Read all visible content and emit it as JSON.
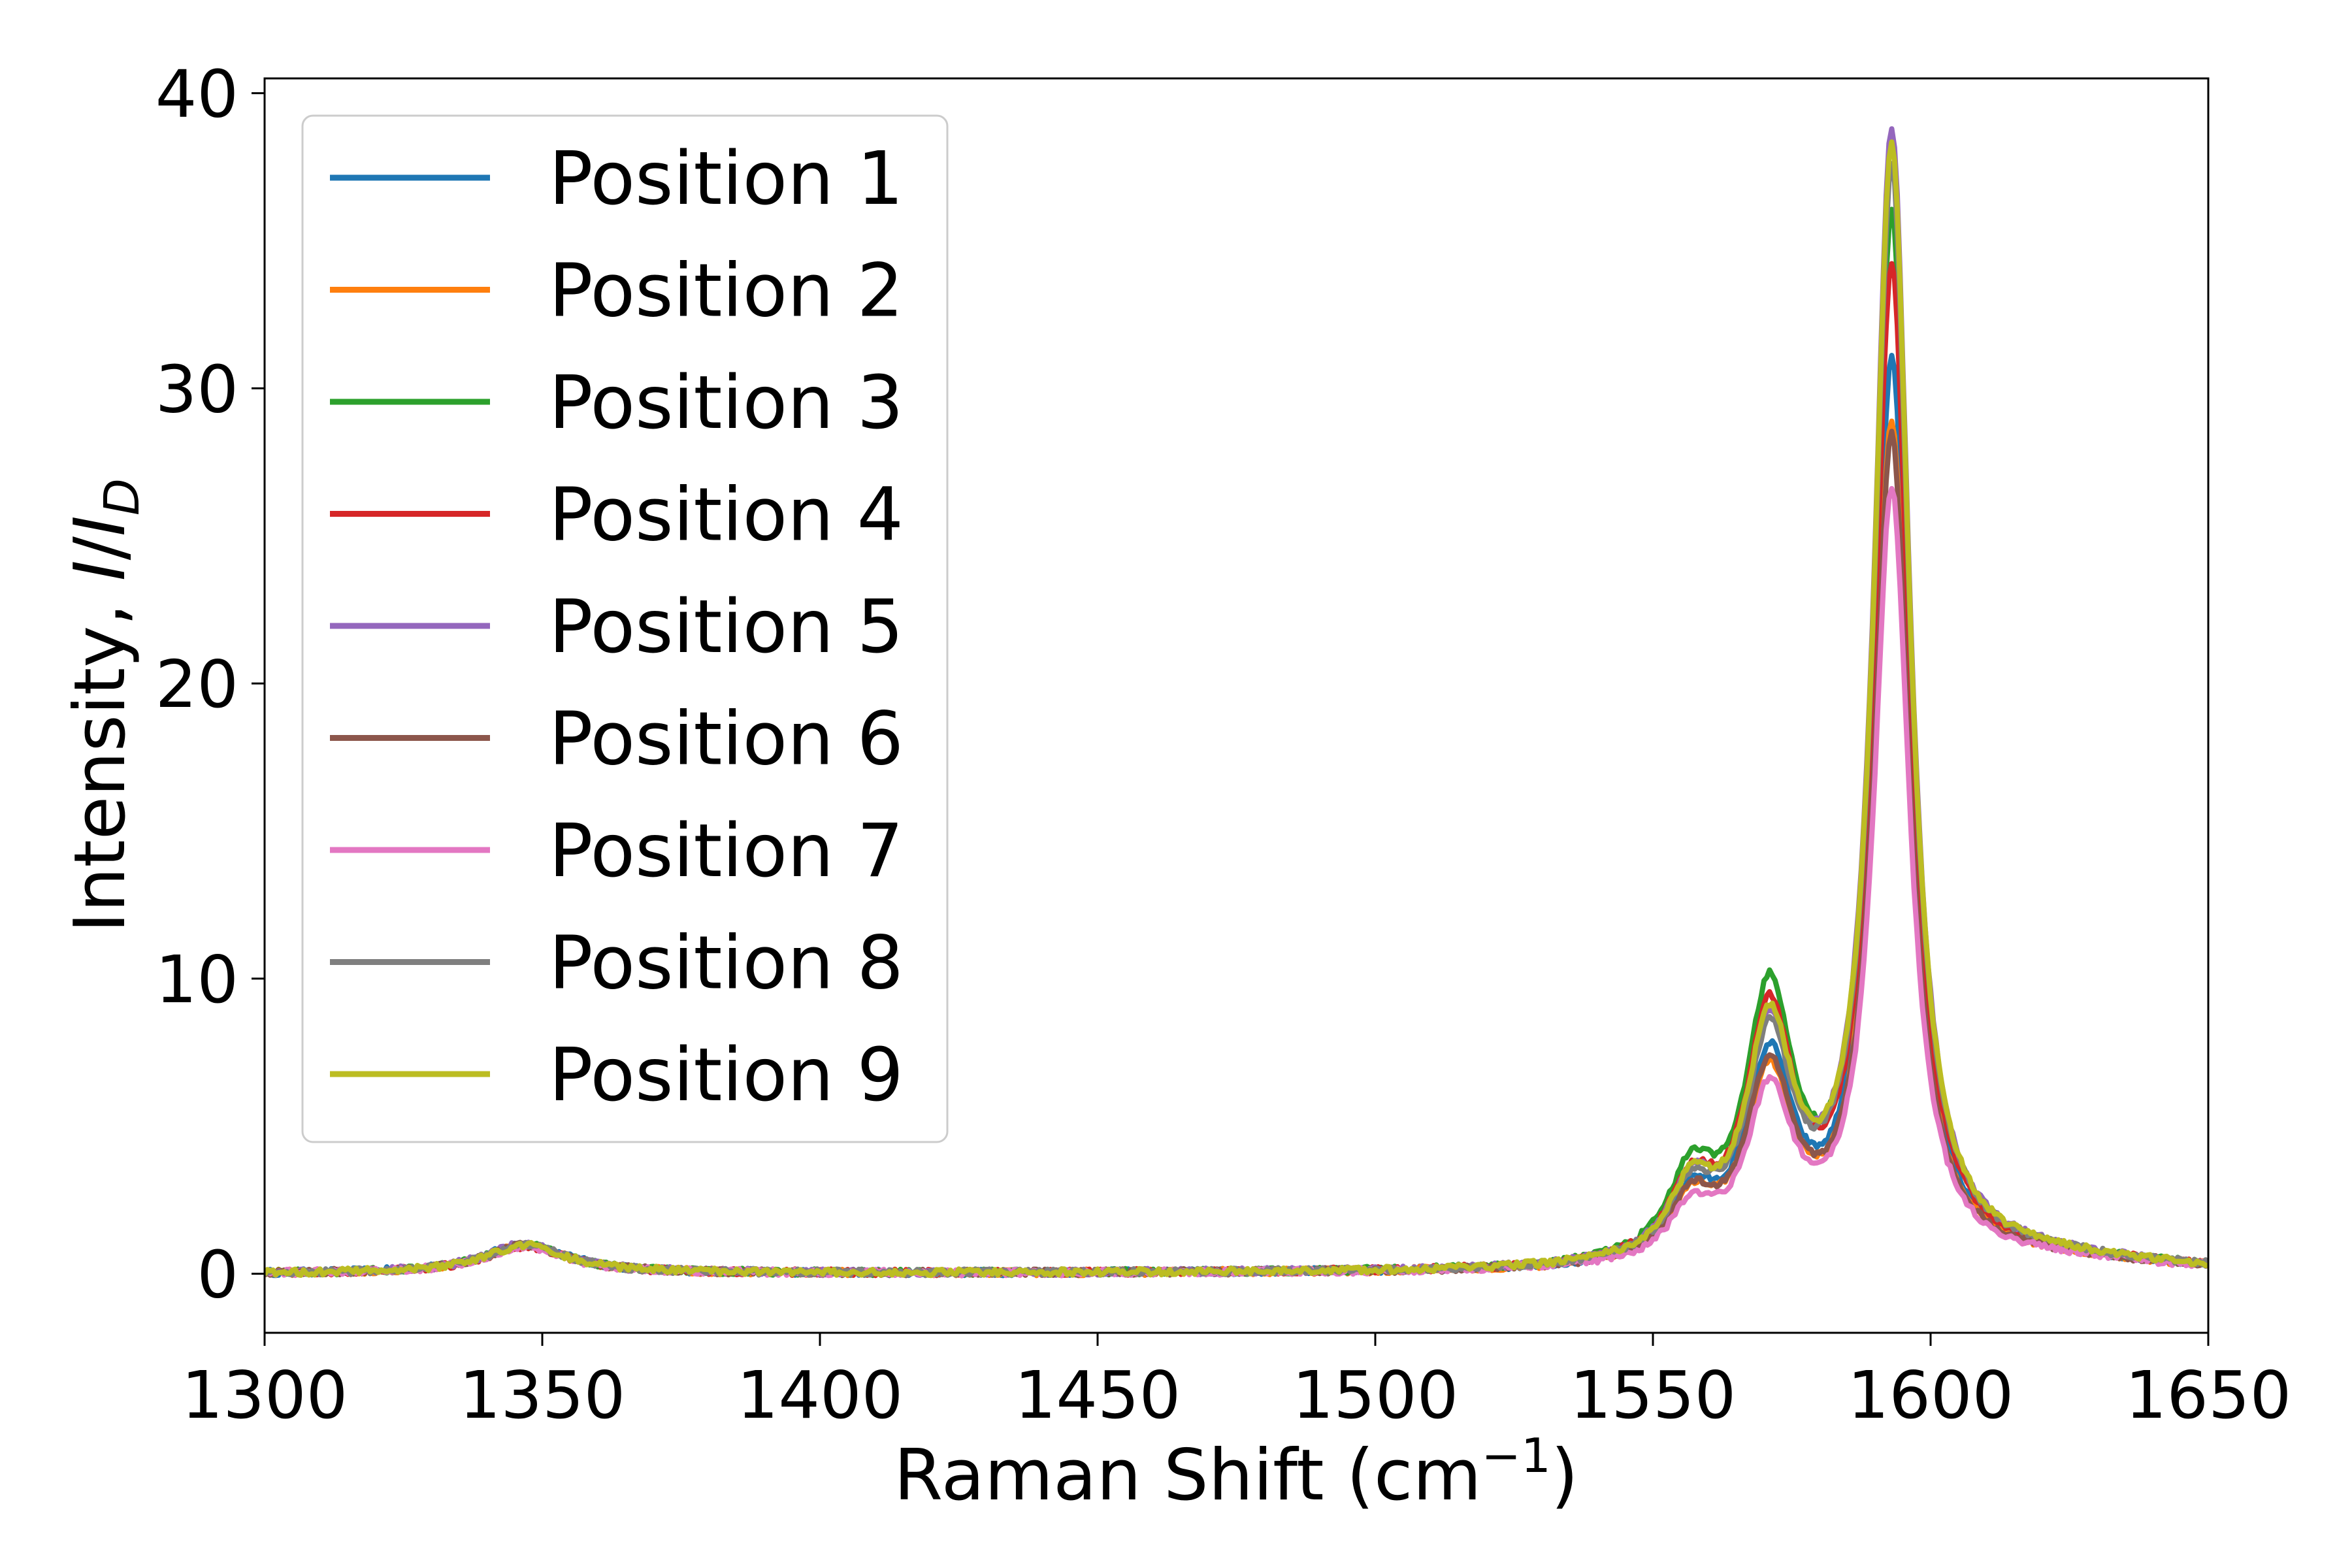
{
  "chart_data": {
    "type": "line",
    "title": "",
    "xlabel": "Raman Shift (cm",
    "xlabel_sup": "−1",
    "xlabel_tail": ")",
    "ylabel_prefix": "Intensity, ",
    "ylabel_i": "I",
    "ylabel_slash": "/",
    "ylabel_id": "I",
    "ylabel_sub": "D",
    "xlim": [
      1300,
      1650
    ],
    "ylim": [
      -2,
      40.5
    ],
    "xticks": [
      1300,
      1350,
      1400,
      1450,
      1500,
      1550,
      1600,
      1650
    ],
    "yticks": [
      0,
      10,
      20,
      30,
      40
    ],
    "grid": false,
    "legend_position": "top-left",
    "series": [
      {
        "name": "Position 1",
        "color": "#1f77b4",
        "d_height": 1.0,
        "shoulder": 2.1,
        "mid": 6.6,
        "main": 30.5
      },
      {
        "name": "Position 2",
        "color": "#ff7f0e",
        "d_height": 0.95,
        "shoulder": 2.0,
        "mid": 6.1,
        "main": 28.4
      },
      {
        "name": "Position 3",
        "color": "#2ca02c",
        "d_height": 0.95,
        "shoulder": 2.7,
        "mid": 8.8,
        "main": 35.3
      },
      {
        "name": "Position 4",
        "color": "#d62728",
        "d_height": 0.9,
        "shoulder": 2.4,
        "mid": 8.1,
        "main": 33.6
      },
      {
        "name": "Position 5",
        "color": "#9467bd",
        "d_height": 1.0,
        "shoulder": 2.3,
        "mid": 7.5,
        "main": 38.3
      },
      {
        "name": "Position 6",
        "color": "#8c564b",
        "d_height": 0.95,
        "shoulder": 2.0,
        "mid": 6.3,
        "main": 28.0
      },
      {
        "name": "Position 7",
        "color": "#e377c2",
        "d_height": 0.9,
        "shoulder": 1.7,
        "mid": 5.6,
        "main": 26.2
      },
      {
        "name": "Position 8",
        "color": "#7f7f7f",
        "d_height": 0.95,
        "shoulder": 2.2,
        "mid": 7.2,
        "main": 37.0
      },
      {
        "name": "Position 9",
        "color": "#bcbd22",
        "d_height": 0.95,
        "shoulder": 2.3,
        "mid": 7.7,
        "main": 37.8
      }
    ]
  }
}
